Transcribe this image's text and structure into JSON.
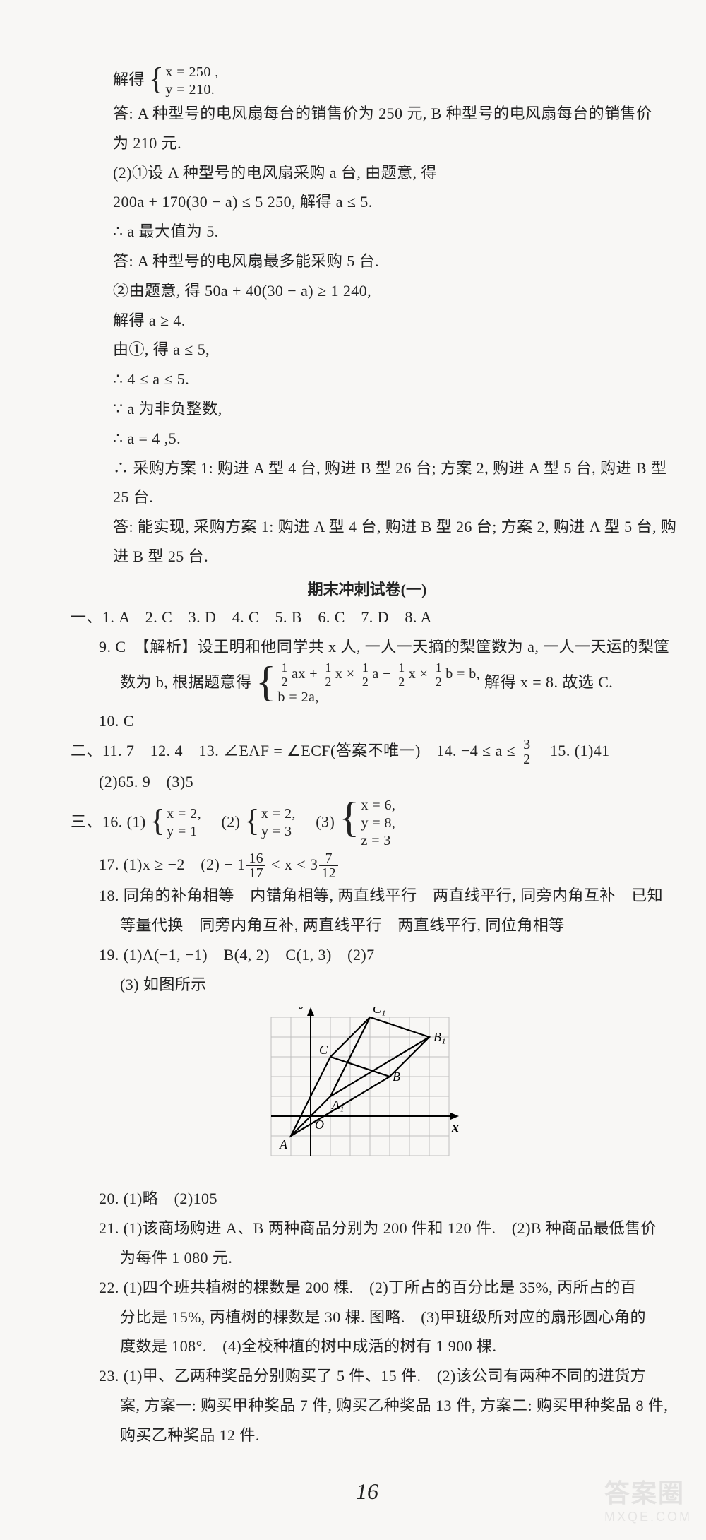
{
  "top": {
    "l1_prefix": "解得",
    "sys1": {
      "r1": "x = 250 ,",
      "r2": "y = 210."
    },
    "l2": "答: A 种型号的电风扇每台的销售价为 250 元, B 种型号的电风扇每台的销售价",
    "l3": "为 210 元.",
    "l4": "(2)①设 A 种型号的电风扇采购 a 台, 由题意, 得",
    "l5": "200a + 170(30 − a) ≤ 5 250, 解得 a ≤ 5.",
    "l6": "∴ a 最大值为 5.",
    "l7": "答: A 种型号的电风扇最多能采购 5 台.",
    "l8": "②由题意, 得 50a + 40(30 − a) ≥ 1 240,",
    "l9": "解得 a ≥ 4.",
    "l10": "由①, 得 a ≤ 5,",
    "l11": "∴ 4 ≤ a ≤ 5.",
    "l12": "∵ a 为非负整数,",
    "l13": "∴ a = 4 ,5.",
    "l14": "∴ 采购方案 1: 购进 A 型 4 台, 购进 B 型 26 台; 方案 2, 购进 A 型 5 台, 购进 B 型",
    "l15": "25 台.",
    "l16": "答: 能实现, 采购方案 1: 购进 A 型 4 台, 购进 B 型 26 台; 方案 2, 购进 A 型 5 台, 购",
    "l17": "进 B 型 25 台."
  },
  "paper_title": "期末冲刺试卷(一)",
  "sec1": {
    "l1": "一、1. A　2. C　3. D　4. C　5. B　6. C　7. D　8. A",
    "l2": "9. C　【解析】设王明和他同学共 x 人, 一人一天摘的梨筐数为 a, 一人一天运的梨筐",
    "l3_prefix": "数为 b, 根据题意得",
    "sys": {
      "r1_parts": {
        "t1": "ax + ",
        "t2": "x × ",
        "t3": "a − ",
        "t4": "x × ",
        "t5": "b = b,"
      },
      "r2": "b = 2a,"
    },
    "l3_suffix": " 解得 x = 8. 故选 C.",
    "l4": "10. C"
  },
  "sec2": {
    "l1_prefix": "二、11. 7　12. 4　13. ∠EAF = ∠ECF(答案不唯一)　14. −4 ≤ a ≤ ",
    "l1_suffix": "　15. (1)41",
    "l2": "(2)65. 9　(3)5"
  },
  "sec3": {
    "l1_prefix": "三、16. (1)",
    "sys1": {
      "r1": "x = 2,",
      "r2": "y = 1"
    },
    "mid1": "　(2)",
    "sys2": {
      "r1": "x = 2,",
      "r2": "y = 3"
    },
    "mid2": "　(3)",
    "sys3": {
      "r1": "x = 6,",
      "r2": "y = 8,",
      "r3": "z = 3"
    },
    "l2_prefix": "17. (1)x ≥ −2　(2) − 1",
    "l2_mid": " < x < 3",
    "l3": "18. 同角的补角相等　内错角相等, 两直线平行　两直线平行, 同旁内角互补　已知",
    "l4": "等量代换　同旁内角互补, 两直线平行　两直线平行, 同位角相等",
    "l5": "19. (1)A(−1, −1)　B(4, 2)　C(1, 3)　(2)7",
    "l6": "(3) 如图所示",
    "l7": "20. (1)略　(2)105",
    "l8": "21. (1)该商场购进 A、B 两种商品分别为 200 件和 120 件.　(2)B 种商品最低售价",
    "l9": "为每件 1 080 元.",
    "l10": "22. (1)四个班共植树的棵数是 200 棵.　(2)丁所占的百分比是 35%, 丙所占的百",
    "l11": "分比是 15%, 丙植树的棵数是 30 棵. 图略.　(3)甲班级所对应的扇形圆心角的",
    "l12": "度数是 108°.　(4)全校种植的树中成活的树有 1 900 棵.",
    "l13": "23. (1)甲、乙两种奖品分别购买了 5 件、15 件.　(2)该公司有两种不同的进货方",
    "l14": "案, 方案一: 购买甲种奖品 7 件, 购买乙种奖品 13 件, 方案二: 购买甲种奖品 8 件,",
    "l15": "购买乙种奖品 12 件."
  },
  "figure": {
    "type": "coordinate-geometry",
    "grid": {
      "xmin": -2,
      "xmax": 7,
      "ymin": -2,
      "ymax": 5,
      "step": 1
    },
    "grid_color": "#bfbfbf",
    "bg_color": "#f8f7f5",
    "axis_color": "#000000",
    "points": {
      "A": {
        "x": -1,
        "y": -1
      },
      "B": {
        "x": 4,
        "y": 2
      },
      "C": {
        "x": 1,
        "y": 3
      },
      "A1": {
        "x": 1,
        "y": 1
      },
      "B1": {
        "x": 6,
        "y": 4
      },
      "C1": {
        "x": 3,
        "y": 5
      },
      "O": {
        "x": 0,
        "y": 0
      }
    },
    "labels": {
      "y": "y",
      "x": "x",
      "O": "O",
      "A": "A",
      "B": "B",
      "C": "C",
      "A1": "A₁",
      "B1": "B₁",
      "C1": "C₁"
    }
  },
  "page_number": "16",
  "watermark_big": "答案圈",
  "watermark_small": "MXQE.COM"
}
